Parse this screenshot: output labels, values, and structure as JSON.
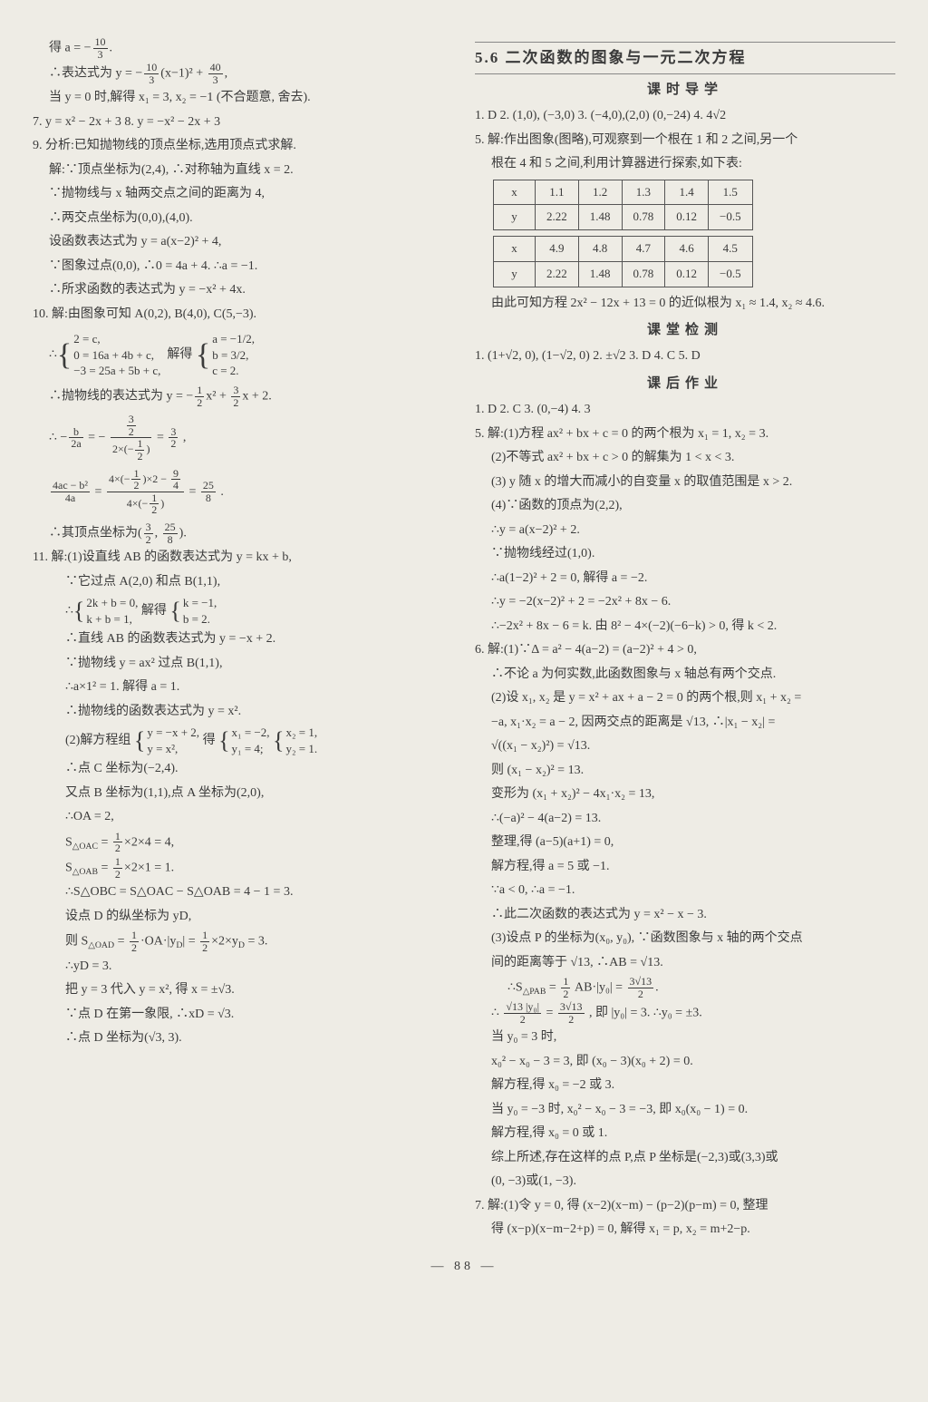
{
  "page_number": "— 88 —",
  "left": {
    "l1": "得 a = −10/3.",
    "l2": "∴表达式为 y = −(10/3)(x−1)² + 40/3,",
    "l3": "当 y = 0 时,解得 x₁ = 3, x₂ = −1 (不合题意, 舍去).",
    "l4": "7. y = x² − 2x + 3    8. y = −x² − 2x + 3",
    "q9_title": "9. 分析:已知抛物线的顶点坐标,选用顶点式求解.",
    "q9_1": "解:∵顶点坐标为(2,4), ∴对称轴为直线 x = 2.",
    "q9_2": "∵抛物线与 x 轴两交点之间的距离为 4,",
    "q9_3": "∴两交点坐标为(0,0),(4,0).",
    "q9_4": "设函数表达式为 y = a(x−2)² + 4,",
    "q9_5": "∵图象过点(0,0), ∴0 = 4a + 4. ∴a = −1.",
    "q9_6": "∴所求函数的表达式为 y = −x² + 4x.",
    "q10_title": "10. 解:由图象可知 A(0,2), B(4,0), C(5,−3).",
    "q10_sysL_1": "2 = c,",
    "q10_sysL_2": "0 = 16a + 4b + c,",
    "q10_sysL_3": "−3 = 25a + 5b + c,",
    "q10_sysR_1": "a = −1/2,",
    "q10_sysR_2": "b = 3/2,",
    "q10_sysR_3": "c = 2.",
    "q10_sys_mid": "解得",
    "q10_5": "∴抛物线的表达式为 y = −(1/2)x² + (3/2)x + 2.",
    "q10_6a": "∴ − b / 2a = − (3/2) / (2×(−1/2)) = 3/2 ,",
    "q10_6b": "(4ac − b²) / 4a = (4×(−1/2)×2 − 9/4) / (4×(−1/2)) = 25/8 .",
    "q10_7": "∴其顶点坐标为( 3/2 , 25/8 ).",
    "q11_title": "11. 解:(1)设直线 AB 的函数表达式为 y = kx + b,",
    "q11_1": "∵它过点 A(2,0) 和点 B(1,1),",
    "q11_sysL_1": "2k + b = 0,",
    "q11_sysL_2": "k + b = 1,",
    "q11_sys_mid": "解得",
    "q11_sysR_1": "k = −1,",
    "q11_sysR_2": "b = 2.",
    "q11_3": "∴直线 AB 的函数表达式为 y = −x + 2.",
    "q11_4": "∵抛物线 y = ax² 过点 B(1,1),",
    "q11_5": "∴a×1² = 1. 解得 a = 1.",
    "q11_6": "∴抛物线的函数表达式为 y = x².",
    "q11_7a": "(2)解方程组",
    "q11_7L_1": "y = −x + 2,",
    "q11_7L_2": "y = x²,",
    "q11_7mid": "得",
    "q11_7R1_1": "x₁ = −2,",
    "q11_7R1_2": "y₁ = 4;",
    "q11_7R2_1": "x₂ = 1,",
    "q11_7R2_2": "y₂ = 1.",
    "q11_8": "∴点 C 坐标为(−2,4).",
    "q11_9": "又点 B 坐标为(1,1),点 A 坐标为(2,0),",
    "q11_10": "∴OA = 2,",
    "q11_11": "S△OAC = (1/2)×2×4 = 4,",
    "q11_12": "S△OAB = (1/2)×2×1 = 1.",
    "q11_13": "∴S△OBC = S△OAC − S△OAB = 4 − 1 = 3.",
    "q11_14": "设点 D 的纵坐标为 yD,",
    "q11_15": "则 S△OAD = (1/2)·OA·|yD| = (1/2)×2×yD = 3.",
    "q11_16": "∴yD = 3.",
    "q11_17": "把 y = 3 代入 y = x², 得 x = ±√3.",
    "q11_18": "∵点 D 在第一象限, ∴xD = √3.",
    "q11_19": "∴点 D 坐标为(√3, 3)."
  },
  "right": {
    "section_header": "5.6  二次函数的图象与一元二次方程",
    "sub1": "课时导学",
    "d1": "1. D   2. (1,0), (−3,0)   3. (−4,0),(2,0)   (0,−24)   4. 4√2",
    "d5": "5. 解:作出图象(图略),可观察到一个根在 1 和 2 之间,另一个",
    "d5b": "根在 4 和 5 之间,利用计算器进行探索,如下表:",
    "table1": {
      "rows": [
        [
          "x",
          "1.1",
          "1.2",
          "1.3",
          "1.4",
          "1.5"
        ],
        [
          "y",
          "2.22",
          "1.48",
          "0.78",
          "0.12",
          "−0.5"
        ]
      ]
    },
    "table2": {
      "rows": [
        [
          "x",
          "4.9",
          "4.8",
          "4.7",
          "4.6",
          "4.5"
        ],
        [
          "y",
          "2.22",
          "1.48",
          "0.78",
          "0.12",
          "−0.5"
        ]
      ]
    },
    "d5c": "由此可知方程 2x² − 12x + 13 = 0 的近似根为 x₁ ≈ 1.4, x₂ ≈ 4.6.",
    "sub2": "课堂检测",
    "c1": "1. (1+√2, 0), (1−√2, 0)   2. ±√2   3. D   4. C   5. D",
    "sub3": "课后作业",
    "h1": "1. D   2. C   3. (0,−4)   4. 3",
    "h5_1": "5. 解:(1)方程 ax² + bx + c = 0 的两个根为 x₁ = 1, x₂ = 3.",
    "h5_2": "(2)不等式 ax² + bx + c > 0 的解集为 1 < x < 3.",
    "h5_3": "(3) y 随 x 的增大而减小的自变量 x 的取值范围是 x > 2.",
    "h5_4": "(4)∵函数的顶点为(2,2),",
    "h5_5": "∴y = a(x−2)² + 2.",
    "h5_6": "∵抛物线经过(1,0).",
    "h5_7": "∴a(1−2)² + 2 = 0, 解得 a = −2.",
    "h5_8": "∴y = −2(x−2)² + 2 = −2x² + 8x − 6.",
    "h5_9": "∴−2x² + 8x − 6 = k. 由 8² − 4×(−2)(−6−k) > 0, 得 k < 2.",
    "h6_1": "6. 解:(1)∵Δ = a² − 4(a−2) = (a−2)² + 4 > 0,",
    "h6_2": "∴不论 a 为何实数,此函数图象与 x 轴总有两个交点.",
    "h6_3": "(2)设 x₁, x₂ 是 y = x² + ax + a − 2 = 0 的两个根,则 x₁ + x₂ =",
    "h6_4": "−a, x₁·x₂ = a − 2, 因两交点的距离是 √13, ∴|x₁ − x₂| =",
    "h6_5": "√((x₁ − x₂)²) = √13.",
    "h6_6": "则 (x₁ − x₂)² = 13.",
    "h6_7": "变形为 (x₁ + x₂)² − 4x₁·x₂ = 13,",
    "h6_8": "∴(−a)² − 4(a−2) = 13.",
    "h6_9": "整理,得 (a−5)(a+1) = 0,",
    "h6_10": "解方程,得 a = 5 或 −1.",
    "h6_11": "∵a < 0, ∴a = −1.",
    "h6_12": "∴此二次函数的表达式为 y = x² − x − 3.",
    "h6_13": "(3)设点 P 的坐标为(x₀, y₀), ∵函数图象与 x 轴的两个交点",
    "h6_14": "间的距离等于 √13, ∴AB = √13.",
    "h6_15": "∴S△PAB = (1/2) AB·|y₀| = (3√13)/2.",
    "h6_16": "∴ (√13 |y₀|)/2 = (3√13)/2 , 即 |y₀| = 3. ∴y₀ = ±3.",
    "h6_17": "当 y₀ = 3 时,",
    "h6_18": "x₀² − x₀ − 3 = 3, 即 (x₀ − 3)(x₀ + 2) = 0.",
    "h6_19": "解方程,得 x₀ = −2 或 3.",
    "h6_20": "当 y₀ = −3 时, x₀² − x₀ − 3 = −3, 即 x₀(x₀ − 1) = 0.",
    "h6_21": "解方程,得 x₀ = 0 或 1.",
    "h6_22": "综上所述,存在这样的点 P,点 P 坐标是(−2,3)或(3,3)或",
    "h6_23": "(0, −3)或(1, −3).",
    "h7_1": "7. 解:(1)令 y = 0, 得 (x−2)(x−m) − (p−2)(p−m) = 0, 整理",
    "h7_2": "得 (x−p)(x−m−2+p) = 0, 解得 x₁ = p, x₂ = m+2−p."
  }
}
